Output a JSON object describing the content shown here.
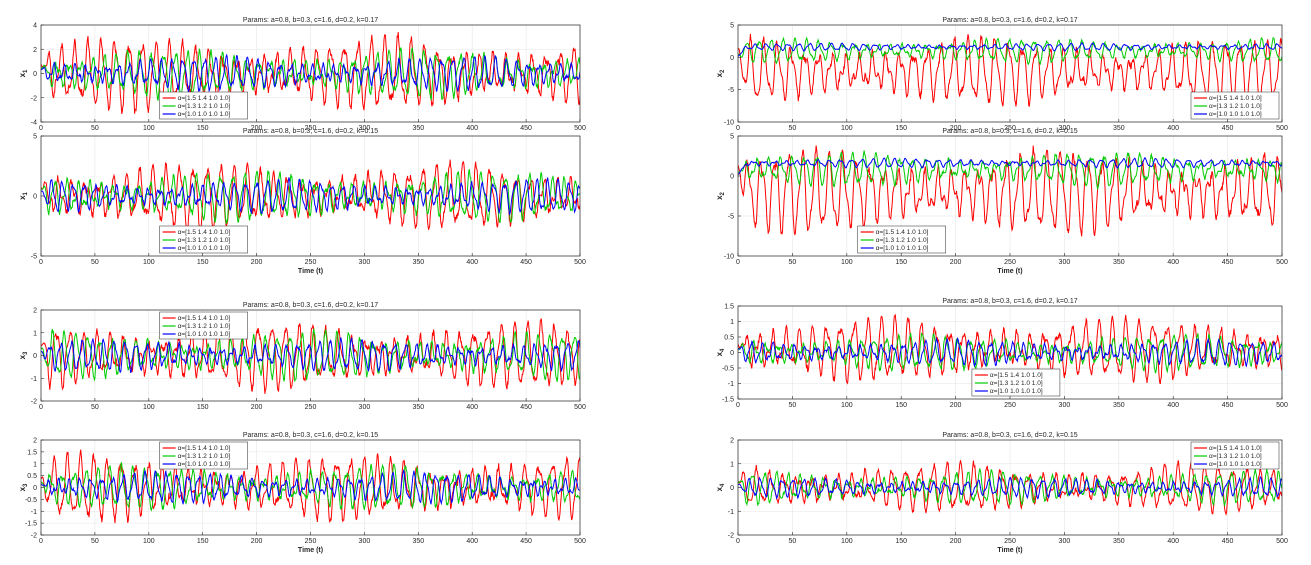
{
  "chart_data": [
    {
      "type": "line",
      "title": "Params: a=0.8, b=0.3, c=1.6, d=0.2, k=0.17",
      "xlabel": "",
      "ylabel": "x",
      "ylabel_sub": "1",
      "xlim": [
        0,
        500
      ],
      "ylim": [
        -4,
        4
      ],
      "xticks": [
        0,
        50,
        100,
        150,
        200,
        250,
        300,
        350,
        400,
        450,
        500
      ],
      "yticks": [
        -4,
        -2,
        0,
        2,
        4
      ],
      "grid": true,
      "legend_position": "bottom-left",
      "series": [
        {
          "name": "α=[1.5 1.4 1.0 1.0]",
          "color": "#ff0000",
          "amplitude": 2.6,
          "period": 12.5,
          "offset": 0,
          "seed": 11
        },
        {
          "name": "α=[1.3 1.2 1.0 1.0]",
          "color": "#00cc00",
          "amplitude": 1.7,
          "period": 11,
          "offset": 0,
          "seed": 12
        },
        {
          "name": "α=[1.0 1.0 1.0 1.0]",
          "color": "#0000ff",
          "amplitude": 1.2,
          "period": 10,
          "offset": 0,
          "seed": 13
        }
      ]
    },
    {
      "type": "line",
      "title": "Params: a=0.8, b=0.3, c=1.6, d=0.2, k=0.17",
      "xlabel": "",
      "ylabel": "x",
      "ylabel_sub": "2",
      "xlim": [
        0,
        500
      ],
      "ylim": [
        -10,
        5
      ],
      "xticks": [
        0,
        50,
        100,
        150,
        200,
        250,
        300,
        350,
        400,
        450,
        500
      ],
      "yticks": [
        -10,
        -5,
        0,
        5
      ],
      "grid": true,
      "legend_position": "bottom-right",
      "series": [
        {
          "name": "α=[1.5 1.4 1.0 1.0]",
          "color": "#ff0000",
          "amplitude": 4.5,
          "period": 12.5,
          "offset": -2.2,
          "seed": 21
        },
        {
          "name": "α=[1.3 1.2 1.0 1.0]",
          "color": "#00cc00",
          "amplitude": 1.6,
          "period": 11,
          "offset": 1.0,
          "seed": 22
        },
        {
          "name": "α=[1.0 1.0 1.0 1.0]",
          "color": "#0000ff",
          "amplitude": 0.5,
          "period": 10,
          "offset": 1.6,
          "seed": 23
        }
      ]
    },
    {
      "type": "line",
      "title": "Params: a=0.8, b=0.3, c=1.6, d=0.2, k=0.15",
      "xlabel": "Time (t)",
      "ylabel": "x",
      "ylabel_sub": "1",
      "xlim": [
        0,
        500
      ],
      "ylim": [
        -5,
        5
      ],
      "xticks": [
        0,
        50,
        100,
        150,
        200,
        250,
        300,
        350,
        400,
        450,
        500
      ],
      "yticks": [
        -5,
        0,
        5
      ],
      "grid": true,
      "legend_position": "bottom-left",
      "series": [
        {
          "name": "α=[1.5 1.4 1.0 1.0]",
          "color": "#ff0000",
          "amplitude": 2.4,
          "period": 12.5,
          "offset": 0,
          "seed": 31
        },
        {
          "name": "α=[1.3 1.2 1.0 1.0]",
          "color": "#00cc00",
          "amplitude": 1.8,
          "period": 11,
          "offset": 0,
          "seed": 32
        },
        {
          "name": "α=[1.0 1.0 1.0 1.0]",
          "color": "#0000ff",
          "amplitude": 1.2,
          "period": 10,
          "offset": 0,
          "seed": 33
        }
      ]
    },
    {
      "type": "line",
      "title": "Params: a=0.8, b=0.3, c=1.6, d=0.2, k=0.15",
      "xlabel": "Time (t)",
      "ylabel": "x",
      "ylabel_sub": "2",
      "xlim": [
        0,
        500
      ],
      "ylim": [
        -10,
        5
      ],
      "xticks": [
        0,
        50,
        100,
        150,
        200,
        250,
        300,
        350,
        400,
        450,
        500
      ],
      "yticks": [
        -10,
        -5,
        0,
        5
      ],
      "grid": true,
      "legend_position": "bottom-left",
      "series": [
        {
          "name": "α=[1.5 1.4 1.0 1.0]",
          "color": "#ff0000",
          "amplitude": 4.6,
          "period": 12.5,
          "offset": -2.0,
          "seed": 41
        },
        {
          "name": "α=[1.3 1.2 1.0 1.0]",
          "color": "#00cc00",
          "amplitude": 1.8,
          "period": 11,
          "offset": 0.8,
          "seed": 42
        },
        {
          "name": "α=[1.0 1.0 1.0 1.0]",
          "color": "#0000ff",
          "amplitude": 0.5,
          "period": 10,
          "offset": 1.6,
          "seed": 43
        }
      ]
    },
    {
      "type": "line",
      "title": "Params: a=0.8, b=0.3, c=1.6, d=0.2, k=0.17",
      "xlabel": "",
      "ylabel": "x",
      "ylabel_sub": "3",
      "xlim": [
        0,
        500
      ],
      "ylim": [
        -2,
        2
      ],
      "xticks": [
        0,
        50,
        100,
        150,
        200,
        250,
        300,
        350,
        400,
        450,
        500
      ],
      "yticks": [
        -2,
        -1,
        0,
        1,
        2
      ],
      "grid": true,
      "legend_position": "top-left",
      "series": [
        {
          "name": "α=[1.5 1.4 1.0 1.0]",
          "color": "#ff0000",
          "amplitude": 1.3,
          "period": 12.5,
          "offset": 0,
          "seed": 51
        },
        {
          "name": "α=[1.3 1.2 1.0 1.0]",
          "color": "#00cc00",
          "amplitude": 0.9,
          "period": 11,
          "offset": 0,
          "seed": 52
        },
        {
          "name": "α=[1.0 1.0 1.0 1.0]",
          "color": "#0000ff",
          "amplitude": 0.6,
          "period": 10,
          "offset": 0,
          "seed": 53
        }
      ]
    },
    {
      "type": "line",
      "title": "Params: a=0.8, b=0.3, c=1.6, d=0.2, k=0.17",
      "xlabel": "",
      "ylabel": "x",
      "ylabel_sub": "4",
      "xlim": [
        0,
        500
      ],
      "ylim": [
        -1.5,
        1.5
      ],
      "xticks": [
        0,
        50,
        100,
        150,
        200,
        250,
        300,
        350,
        400,
        450,
        500
      ],
      "yticks": [
        -1.5,
        -1,
        -0.5,
        0,
        0.5,
        1,
        1.5
      ],
      "grid": true,
      "legend_position": "bottom-center",
      "series": [
        {
          "name": "α=[1.5 1.4 1.0 1.0]",
          "color": "#ff0000",
          "amplitude": 0.9,
          "period": 12.5,
          "offset": 0.1,
          "seed": 61
        },
        {
          "name": "α=[1.3 1.2 1.0 1.0]",
          "color": "#00cc00",
          "amplitude": 0.5,
          "period": 11,
          "offset": 0,
          "seed": 62
        },
        {
          "name": "α=[1.0 1.0 1.0 1.0]",
          "color": "#0000ff",
          "amplitude": 0.35,
          "period": 10,
          "offset": 0,
          "seed": 63
        }
      ]
    },
    {
      "type": "line",
      "title": "Params: a=0.8, b=0.3, c=1.6, d=0.2, k=0.15",
      "xlabel": "Time (t)",
      "ylabel": "x",
      "ylabel_sub": "3",
      "xlim": [
        0,
        500
      ],
      "ylim": [
        -2,
        2
      ],
      "xticks": [
        0,
        50,
        100,
        150,
        200,
        250,
        300,
        350,
        400,
        450,
        500
      ],
      "yticks": [
        -2,
        -1.5,
        -1,
        -0.5,
        0,
        0.5,
        1,
        1.5,
        2
      ],
      "grid": true,
      "legend_position": "top-center",
      "series": [
        {
          "name": "α=[1.5 1.4 1.0 1.0]",
          "color": "#ff0000",
          "amplitude": 1.2,
          "period": 12.5,
          "offset": 0,
          "seed": 71
        },
        {
          "name": "α=[1.3 1.2 1.0 1.0]",
          "color": "#00cc00",
          "amplitude": 0.8,
          "period": 11,
          "offset": 0,
          "seed": 72
        },
        {
          "name": "α=[1.0 1.0 1.0 1.0]",
          "color": "#0000ff",
          "amplitude": 0.55,
          "period": 10,
          "offset": 0,
          "seed": 73
        }
      ]
    },
    {
      "type": "line",
      "title": "Params: a=0.8, b=0.3, c=1.6, d=0.2, k=0.15",
      "xlabel": "Time (t)",
      "ylabel": "x",
      "ylabel_sub": "4",
      "xlim": [
        0,
        500
      ],
      "ylim": [
        -2,
        2
      ],
      "xticks": [
        0,
        50,
        100,
        150,
        200,
        250,
        300,
        350,
        400,
        450,
        500
      ],
      "yticks": [
        -2,
        -1,
        0,
        1,
        2
      ],
      "grid": true,
      "legend_position": "top-right",
      "series": [
        {
          "name": "α=[1.5 1.4 1.0 1.0]",
          "color": "#ff0000",
          "amplitude": 0.9,
          "period": 12.5,
          "offset": 0,
          "seed": 81
        },
        {
          "name": "α=[1.3 1.2 1.0 1.0]",
          "color": "#00cc00",
          "amplitude": 0.6,
          "period": 11,
          "offset": 0,
          "seed": 82
        },
        {
          "name": "α=[1.0 1.0 1.0 1.0]",
          "color": "#0000ff",
          "amplitude": 0.35,
          "period": 10,
          "offset": 0,
          "seed": 83
        }
      ]
    }
  ]
}
